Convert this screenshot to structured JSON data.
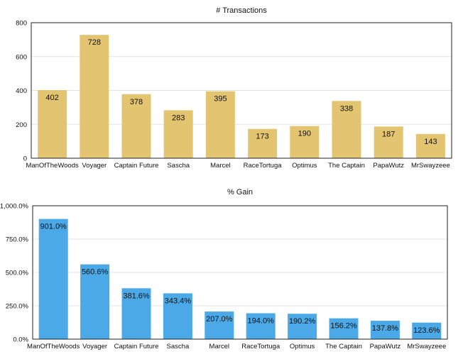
{
  "chart_data": [
    {
      "type": "bar",
      "title": "# Transactions",
      "categories": [
        "ManOfTheWoods",
        "Voyager",
        "Captain Future",
        "Sascha",
        "Marcel",
        "RaceTortuga",
        "Optimus",
        "The Captain",
        "PapaWutz",
        "MrSwayzeee"
      ],
      "values": [
        402,
        728,
        378,
        283,
        395,
        173,
        190,
        338,
        187,
        143
      ],
      "data_labels": [
        "402",
        "728",
        "378",
        "283",
        "395",
        "173",
        "190",
        "338",
        "187",
        "143"
      ],
      "ylim": [
        0,
        800
      ],
      "yticks": [
        0,
        200,
        400,
        600,
        800
      ],
      "ytick_labels": [
        "0",
        "200",
        "400",
        "600",
        "800"
      ],
      "xlabel": "",
      "ylabel": "",
      "grid": true,
      "color": "#e3c470"
    },
    {
      "type": "bar",
      "title": "% Gain",
      "categories": [
        "ManOfTheWoods",
        "Voyager",
        "Captain Future",
        "Sascha",
        "Marcel",
        "RaceTortuga",
        "Optimus",
        "The Captain",
        "PapaWutz",
        "MrSwayzeee"
      ],
      "values": [
        901.0,
        560.6,
        381.6,
        343.4,
        207.0,
        194.0,
        190.2,
        156.2,
        137.8,
        123.6
      ],
      "data_labels": [
        "901.0%",
        "560.6%",
        "381.6%",
        "343.4%",
        "207.0%",
        "194.0%",
        "190.2%",
        "156.2%",
        "137.8%",
        "123.6%"
      ],
      "ylim": [
        0,
        1000
      ],
      "yticks": [
        0,
        250,
        500,
        750,
        1000
      ],
      "ytick_labels": [
        "0.0%",
        "250.0%",
        "500.0%",
        "750.0%",
        "1,000.0%"
      ],
      "xlabel": "",
      "ylabel": "",
      "grid": true,
      "color": "#4ba9e8"
    }
  ]
}
